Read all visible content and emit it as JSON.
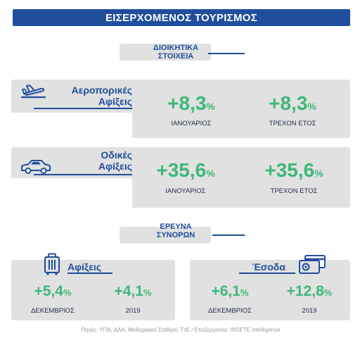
{
  "title": "ΕΙΣΕΡΧΟΜΕΝΟΣ ΤΟΥΡΙΣΜΟΣ",
  "admin": {
    "line1": "ΔΙΟΙΚΗΤΙΚΑ",
    "line2": "ΣΤΟΙΧΕΙΑ"
  },
  "air": {
    "line1": "Αεροπορικές",
    "line2": "Αφίξεις",
    "stats": [
      {
        "value": "+8,3",
        "unit": "%",
        "label": "ΙΑΝΟΥΑΡΙΟΣ"
      },
      {
        "value": "+8,3",
        "unit": "%",
        "label": "ΤΡΕΧΟΝ ΕΤΟΣ"
      }
    ]
  },
  "road": {
    "line1": "Οδικές",
    "line2": "Αφίξεις",
    "stats": [
      {
        "value": "+35,6",
        "unit": "%",
        "label": "ΙΑΝΟΥΑΡΙΟΣ"
      },
      {
        "value": "+35,6",
        "unit": "%",
        "label": "ΤΡΕΧΟΝ ΕΤΟΣ"
      }
    ]
  },
  "survey": {
    "line1": "ΕΡΕΥΝΑ",
    "line2": "ΣΥΝΟΡΩΝ"
  },
  "arrivals": {
    "title": "Αφίξεις",
    "stats": [
      {
        "value": "+5,4",
        "unit": "%",
        "label": "ΔΕΚΕΜΒΡΙΟΣ"
      },
      {
        "value": "+4,1",
        "unit": "%",
        "label": "2019"
      }
    ]
  },
  "income": {
    "title": "Έσοδα",
    "stats": [
      {
        "value": "+6,1",
        "unit": "%",
        "label": "ΔΕΚΕΜΒΡΙΟΣ"
      },
      {
        "value": "+12,8",
        "unit": "%",
        "label": "2019"
      }
    ]
  },
  "footer": "Πηγές: ΥΠΑ, ΔΑΑ, Μεθοριακοί Σταθμοί, ΤτΕ / Επεξεργασία: INSETE Intelligence",
  "colors": {
    "blue": "#1f4e9c",
    "green": "#3cb878",
    "grey": "#e1e1e1"
  },
  "icons": [
    "airplane-icon",
    "car-icon",
    "suitcase-icon",
    "credit-card-icon"
  ]
}
